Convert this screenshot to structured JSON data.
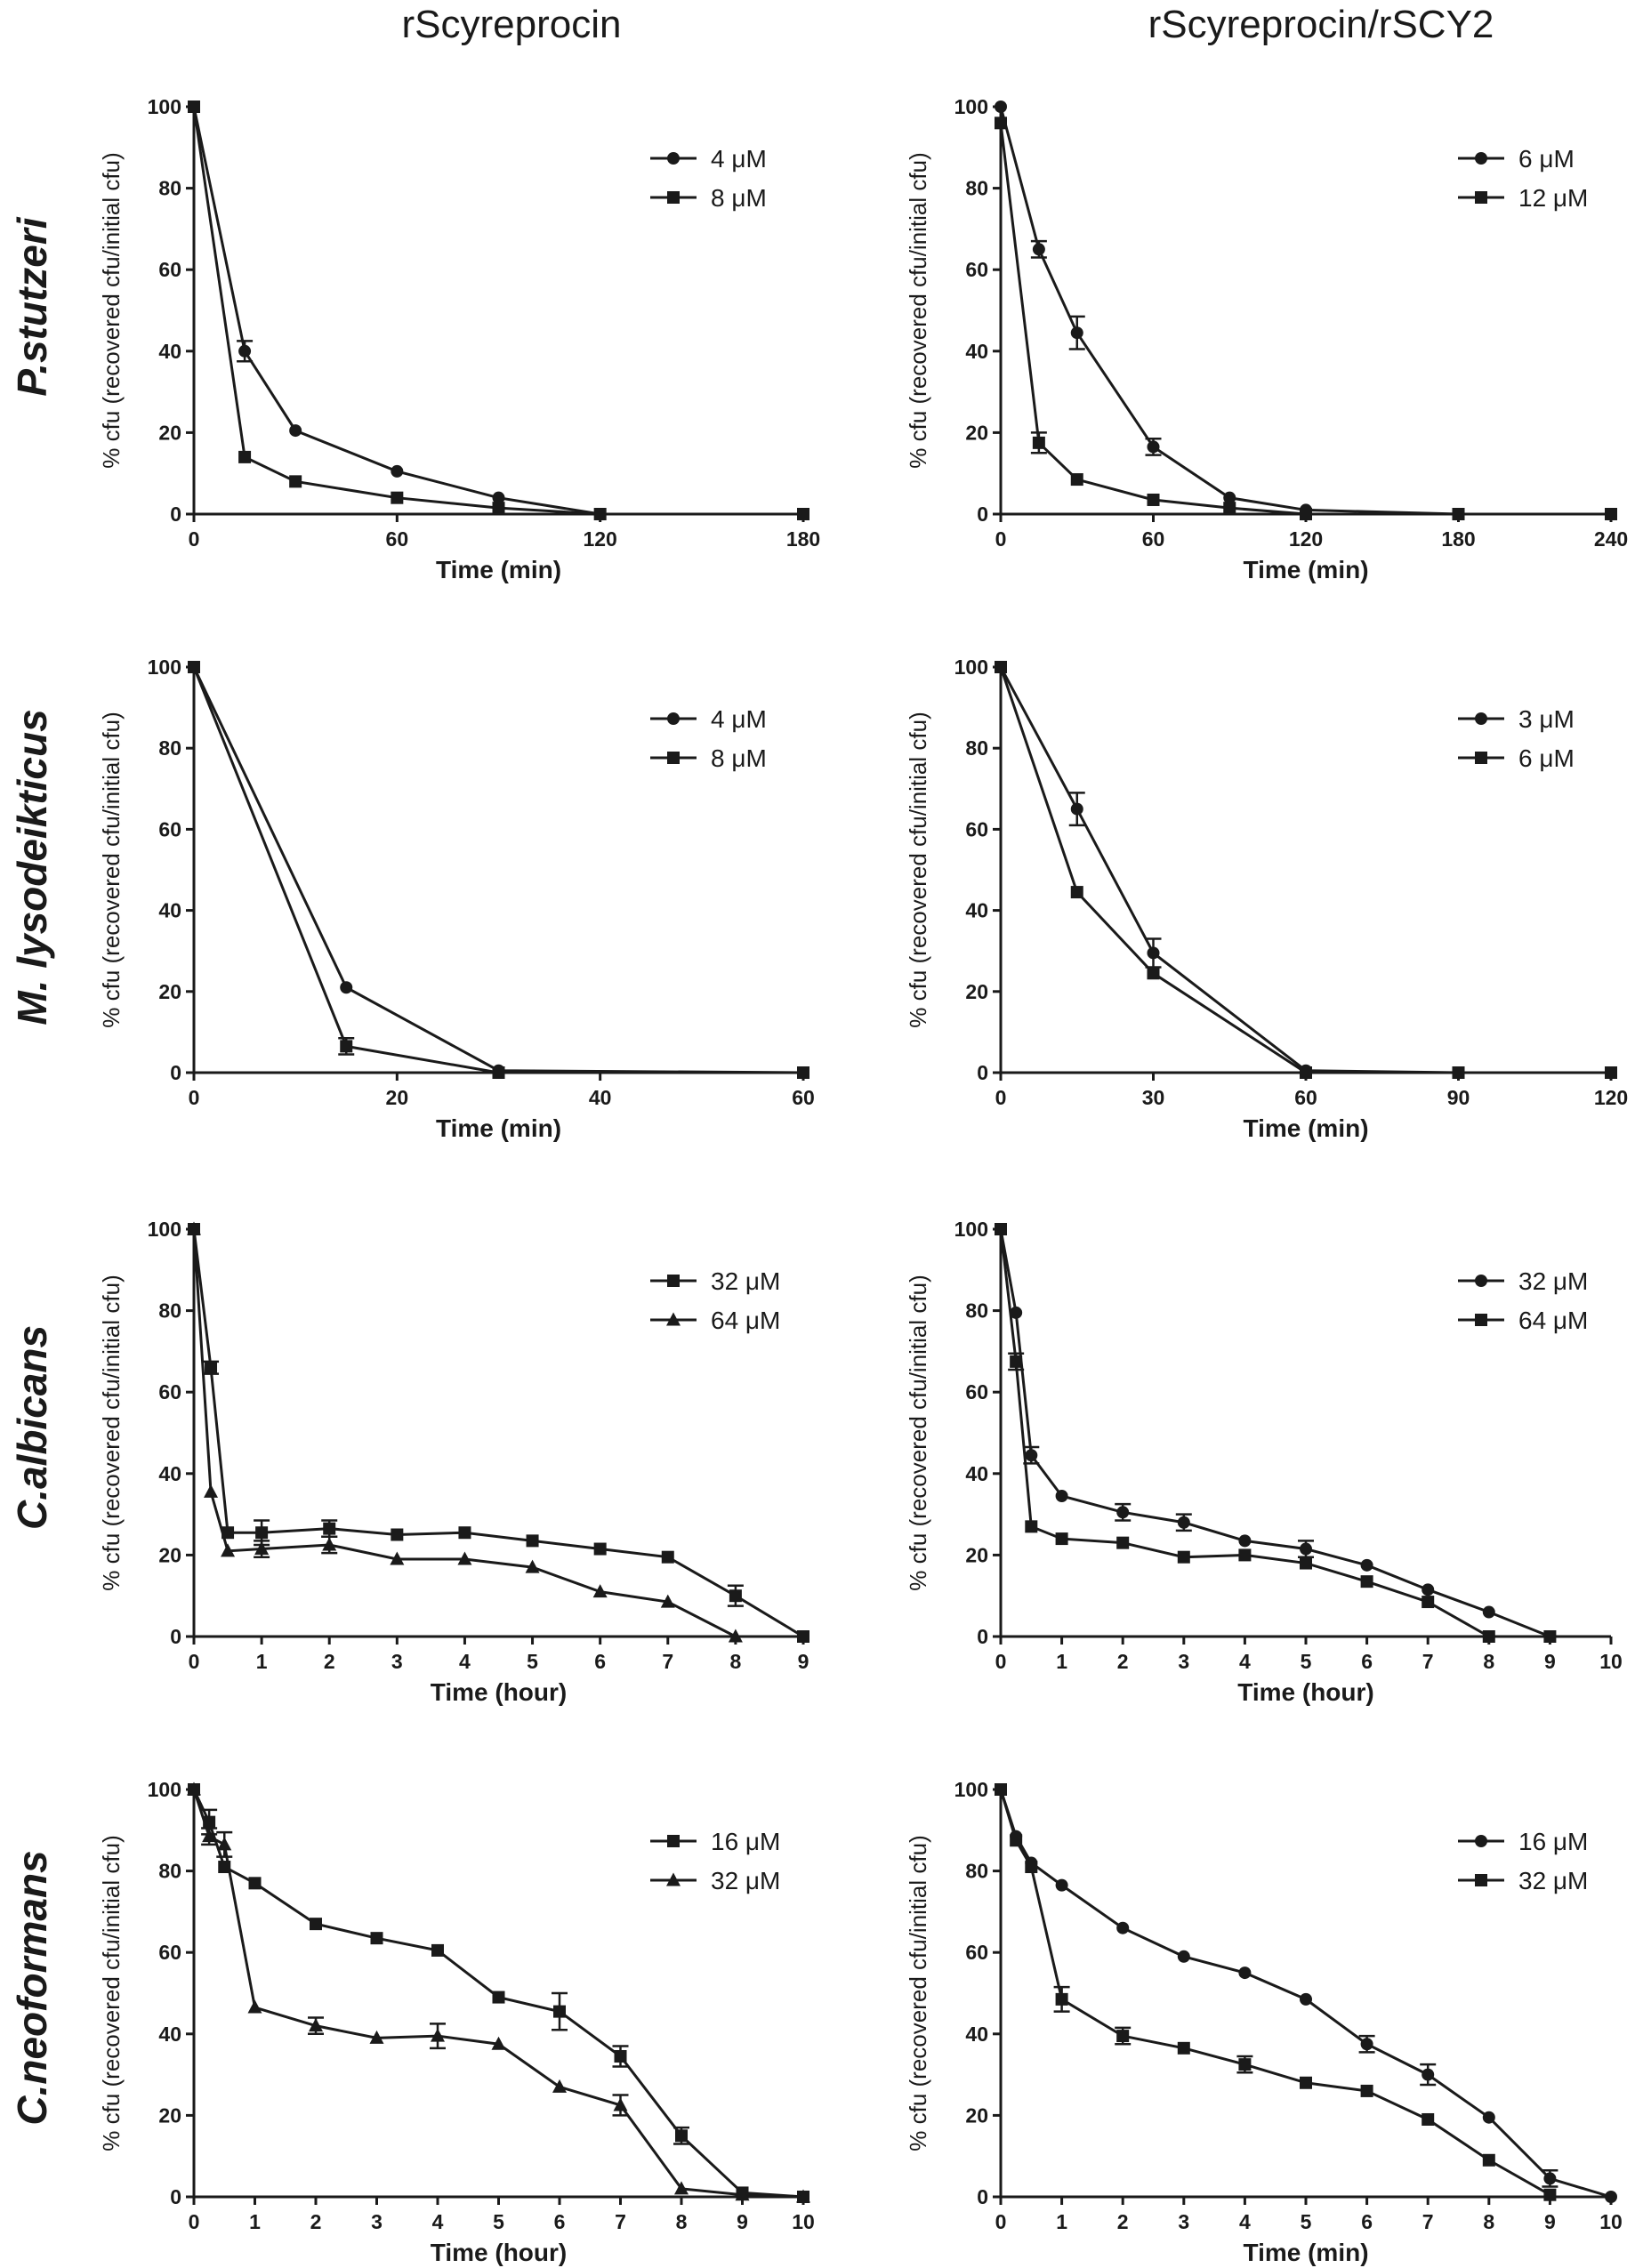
{
  "column_titles": [
    "rScyreprocin",
    "rScyreprocin/rSCY2"
  ],
  "row_titles": [
    "P.stutzeri",
    "M. lysodeikticus",
    "C.albicans",
    "C.neoformans"
  ],
  "chart_data": [
    {
      "type": "line",
      "row": 0,
      "col": 0,
      "xlabel": "Time (min)",
      "ylabel": "% cfu (recovered cfu/initial cfu)",
      "xlim": [
        0,
        180
      ],
      "xticks": [
        0,
        60,
        120,
        180
      ],
      "ylim": [
        0,
        100
      ],
      "yticks": [
        0,
        20,
        40,
        60,
        80,
        100
      ],
      "series": [
        {
          "name": "4 μM",
          "marker": "circle",
          "x": [
            0,
            15,
            30,
            60,
            90,
            120
          ],
          "y": [
            100,
            40,
            20.5,
            10.5,
            4,
            0
          ],
          "err": [
            0,
            2.5,
            0,
            0,
            0,
            0
          ]
        },
        {
          "name": "8 μM",
          "marker": "square",
          "x": [
            0,
            15,
            30,
            60,
            90,
            120,
            180
          ],
          "y": [
            100,
            14,
            8,
            4,
            1.5,
            0,
            0
          ],
          "err": [
            0,
            0,
            0,
            0,
            0,
            0,
            0
          ]
        }
      ]
    },
    {
      "type": "line",
      "row": 0,
      "col": 1,
      "xlabel": "Time (min)",
      "ylabel": "% cfu (recovered cfu/initial cfu)",
      "xlim": [
        0,
        240
      ],
      "xticks": [
        0,
        60,
        120,
        180,
        240
      ],
      "ylim": [
        0,
        100
      ],
      "yticks": [
        0,
        20,
        40,
        60,
        80,
        100
      ],
      "series": [
        {
          "name": "6 μM",
          "marker": "circle",
          "x": [
            0,
            15,
            30,
            60,
            90,
            120,
            180,
            240
          ],
          "y": [
            100,
            65,
            44.5,
            16.5,
            4,
            1,
            0,
            0
          ],
          "err": [
            0,
            2,
            4,
            2,
            0,
            0,
            0,
            0
          ]
        },
        {
          "name": "12 μM",
          "marker": "square",
          "x": [
            0,
            15,
            30,
            60,
            90,
            120,
            180,
            240
          ],
          "y": [
            96,
            17.5,
            8.5,
            3.5,
            1.5,
            0,
            0,
            0
          ],
          "err": [
            0,
            2.5,
            0,
            0,
            0,
            0,
            0,
            0
          ]
        }
      ]
    },
    {
      "type": "line",
      "row": 1,
      "col": 0,
      "xlabel": "Time (min)",
      "ylabel": "% cfu (recovered cfu/initial cfu)",
      "xlim": [
        0,
        60
      ],
      "xticks": [
        0,
        20,
        40,
        60
      ],
      "ylim": [
        0,
        100
      ],
      "yticks": [
        0,
        20,
        40,
        60,
        80,
        100
      ],
      "series": [
        {
          "name": "4 μM",
          "marker": "circle",
          "x": [
            0,
            15,
            30,
            60
          ],
          "y": [
            100,
            21,
            0.5,
            0
          ],
          "err": [
            0,
            0,
            0,
            0
          ]
        },
        {
          "name": "8 μM",
          "marker": "square",
          "x": [
            0,
            15,
            30,
            60
          ],
          "y": [
            100,
            6.5,
            0,
            0
          ],
          "err": [
            0,
            2,
            0,
            0
          ]
        }
      ]
    },
    {
      "type": "line",
      "row": 1,
      "col": 1,
      "xlabel": "Time (min)",
      "ylabel": "% cfu (recovered cfu/initial cfu)",
      "xlim": [
        0,
        120
      ],
      "xticks": [
        0,
        30,
        60,
        90,
        120
      ],
      "ylim": [
        0,
        100
      ],
      "yticks": [
        0,
        20,
        40,
        60,
        80,
        100
      ],
      "series": [
        {
          "name": "3 μM",
          "marker": "circle",
          "x": [
            0,
            15,
            30,
            60,
            90,
            120
          ],
          "y": [
            100,
            65,
            29.5,
            0.5,
            0,
            0
          ],
          "err": [
            0,
            4,
            3.5,
            0,
            0,
            0
          ]
        },
        {
          "name": "6 μM",
          "marker": "square",
          "x": [
            0,
            15,
            30,
            60,
            90,
            120
          ],
          "y": [
            100,
            44.5,
            24.5,
            0,
            0,
            0
          ],
          "err": [
            0,
            0,
            0,
            0,
            0,
            0
          ]
        }
      ]
    },
    {
      "type": "line",
      "row": 2,
      "col": 0,
      "xlabel": "Time (hour)",
      "ylabel": "% cfu (recovered cfu/initial cfu)",
      "xlim": [
        0,
        9
      ],
      "xticks": [
        0,
        1,
        2,
        3,
        4,
        5,
        6,
        7,
        8,
        9
      ],
      "ylim": [
        0,
        100
      ],
      "yticks": [
        0,
        20,
        40,
        60,
        80,
        100
      ],
      "series": [
        {
          "name": "32 μM",
          "marker": "square",
          "x": [
            0,
            0.25,
            0.5,
            1,
            2,
            3,
            4,
            5,
            6,
            7,
            8,
            9
          ],
          "y": [
            100,
            66,
            25.5,
            25.5,
            26.5,
            25,
            25.5,
            23.5,
            21.5,
            19.5,
            10,
            0
          ],
          "err": [
            0,
            1.5,
            0,
            3,
            2,
            0,
            0,
            0,
            0,
            0,
            2.5,
            0
          ]
        },
        {
          "name": "64 μM",
          "marker": "triangle",
          "x": [
            0,
            0.25,
            0.5,
            1,
            2,
            3,
            4,
            5,
            6,
            7,
            8
          ],
          "y": [
            100,
            35.5,
            21,
            21.5,
            22.5,
            19,
            19,
            17,
            11,
            8.5,
            0
          ],
          "err": [
            0,
            0,
            0,
            2,
            2,
            0,
            0,
            0,
            0,
            0,
            0
          ]
        }
      ]
    },
    {
      "type": "line",
      "row": 2,
      "col": 1,
      "xlabel": "Time (hour)",
      "ylabel": "% cfu (recovered cfu/initial cfu)",
      "xlim": [
        0,
        10
      ],
      "xticks": [
        0,
        1,
        2,
        3,
        4,
        5,
        6,
        7,
        8,
        9,
        10
      ],
      "ylim": [
        0,
        100
      ],
      "yticks": [
        0,
        20,
        40,
        60,
        80,
        100
      ],
      "series": [
        {
          "name": "32 μM",
          "marker": "circle",
          "x": [
            0,
            0.25,
            0.5,
            1,
            2,
            3,
            4,
            5,
            6,
            7,
            8,
            9
          ],
          "y": [
            100,
            79.5,
            44.5,
            34.5,
            30.5,
            28,
            23.5,
            21.5,
            17.5,
            11.5,
            6,
            0
          ],
          "err": [
            0,
            0,
            2,
            0,
            2,
            2,
            0,
            2,
            0,
            0,
            0,
            0
          ]
        },
        {
          "name": "64 μM",
          "marker": "square",
          "x": [
            0,
            0.25,
            0.5,
            1,
            2,
            3,
            4,
            5,
            6,
            7,
            8,
            9
          ],
          "y": [
            100,
            67.5,
            27,
            24,
            23,
            19.5,
            20,
            18,
            13.5,
            8.5,
            0,
            0
          ],
          "err": [
            0,
            2,
            0,
            0,
            0,
            0,
            0,
            0,
            0,
            0,
            0,
            0
          ]
        }
      ]
    },
    {
      "type": "line",
      "row": 3,
      "col": 0,
      "xlabel": "Time (hour)",
      "ylabel": "% cfu (recovered cfu/initial cfu)",
      "xlim": [
        0,
        10
      ],
      "xticks": [
        0,
        1,
        2,
        3,
        4,
        5,
        6,
        7,
        8,
        9,
        10
      ],
      "ylim": [
        0,
        100
      ],
      "yticks": [
        0,
        20,
        40,
        60,
        80,
        100
      ],
      "series": [
        {
          "name": "16 μM",
          "marker": "square",
          "x": [
            0,
            0.25,
            0.5,
            1,
            2,
            3,
            4,
            5,
            6,
            7,
            8,
            9,
            10
          ],
          "y": [
            100,
            92,
            81,
            77,
            67,
            63.5,
            60.5,
            49,
            45.5,
            34.5,
            15,
            1,
            0
          ],
          "err": [
            0,
            3,
            0,
            0,
            0,
            0,
            0,
            0,
            4.5,
            2.5,
            2,
            0,
            0
          ]
        },
        {
          "name": "32 μM",
          "marker": "triangle",
          "x": [
            0,
            0.25,
            0.5,
            1,
            2,
            3,
            4,
            5,
            6,
            7,
            8,
            9,
            10
          ],
          "y": [
            100,
            88.5,
            86.5,
            46.5,
            42,
            39,
            39.5,
            37.5,
            27,
            22.5,
            2,
            0.5,
            0
          ],
          "err": [
            0,
            2,
            3,
            0,
            2,
            0,
            3,
            0,
            0,
            2.5,
            0,
            0,
            0
          ]
        }
      ]
    },
    {
      "type": "line",
      "row": 3,
      "col": 1,
      "xlabel": "Time (min)",
      "ylabel": "% cfu (recovered cfu/initial cfu)",
      "xlim": [
        0,
        10
      ],
      "xticks": [
        0,
        1,
        2,
        3,
        4,
        5,
        6,
        7,
        8,
        9,
        10
      ],
      "ylim": [
        0,
        100
      ],
      "yticks": [
        0,
        20,
        40,
        60,
        80,
        100
      ],
      "series": [
        {
          "name": "16 μM",
          "marker": "circle",
          "x": [
            0,
            0.25,
            0.5,
            1,
            2,
            3,
            4,
            5,
            6,
            7,
            8,
            9,
            10
          ],
          "y": [
            100,
            88.5,
            82,
            76.5,
            66,
            59,
            55,
            48.5,
            37.5,
            30,
            19.5,
            4.5,
            0
          ],
          "err": [
            0,
            0,
            0,
            0,
            0,
            0,
            0,
            0,
            2,
            2.5,
            0,
            2,
            0
          ]
        },
        {
          "name": "32 μM",
          "marker": "square",
          "x": [
            0,
            0.25,
            0.5,
            1,
            2,
            3,
            4,
            5,
            6,
            7,
            8,
            9
          ],
          "y": [
            100,
            87.5,
            81,
            48.5,
            39.5,
            36.5,
            32.5,
            28,
            26,
            19,
            9,
            0.5
          ],
          "err": [
            0,
            0,
            0,
            3,
            2,
            0,
            2,
            0,
            0,
            0,
            0,
            0
          ]
        }
      ]
    }
  ]
}
